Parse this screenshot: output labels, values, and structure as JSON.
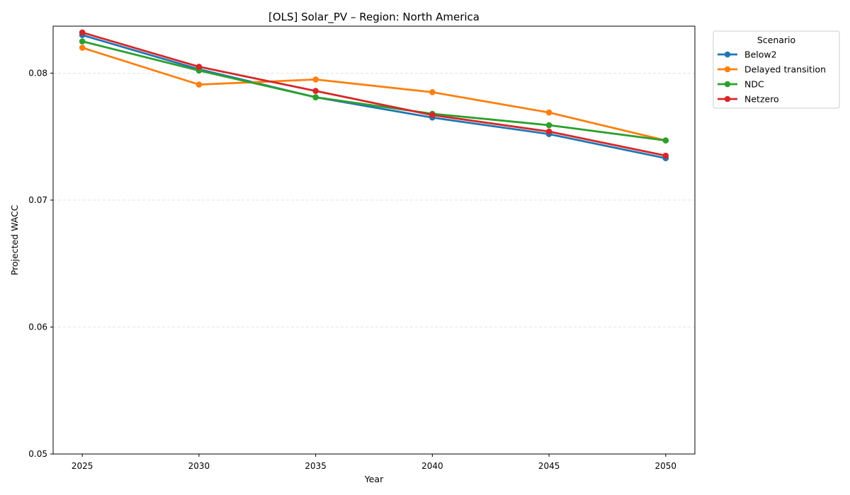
{
  "chart_data": {
    "type": "line",
    "title": "[OLS] Solar_PV – Region: North America",
    "xlabel": "Year",
    "ylabel": "Projected WACC",
    "x": [
      2025,
      2030,
      2035,
      2040,
      2045,
      2050
    ],
    "xlim": [
      2023.75,
      2051.25
    ],
    "ylim": [
      0.05,
      0.0837
    ],
    "yticks": [
      0.05,
      0.06,
      0.07,
      0.08
    ],
    "ytick_labels": [
      "0.05",
      "0.06",
      "0.07",
      "0.08"
    ],
    "xtick_labels": [
      "2025",
      "2030",
      "2035",
      "2040",
      "2045",
      "2050"
    ],
    "grid": "horizontal dashed",
    "legend": {
      "title": "Scenario",
      "placement": "outside-right"
    },
    "series": [
      {
        "name": "Below2",
        "color": "#1f77b4",
        "values": [
          0.083,
          0.0803,
          0.0781,
          0.0765,
          0.0752,
          0.0733
        ]
      },
      {
        "name": "Delayed transition",
        "color": "#ff7f0e",
        "values": [
          0.082,
          0.0791,
          0.0795,
          0.0785,
          0.0769,
          0.0747
        ]
      },
      {
        "name": "NDC",
        "color": "#2ca02c",
        "values": [
          0.0825,
          0.0802,
          0.0781,
          0.0768,
          0.0759,
          0.0747
        ]
      },
      {
        "name": "Netzero",
        "color": "#d62728",
        "values": [
          0.0832,
          0.0805,
          0.0786,
          0.0767,
          0.0754,
          0.0735
        ]
      }
    ]
  }
}
